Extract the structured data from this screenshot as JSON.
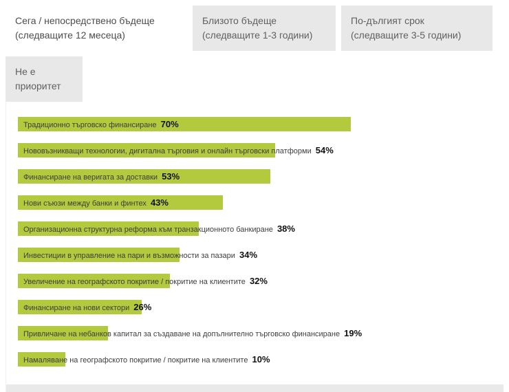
{
  "tabs": {
    "row1": [
      {
        "line1": "Сега / непосредствено бъдеще",
        "line2": "(следващите 12 месеца)",
        "active": true
      },
      {
        "line1": "Близото бъдеще",
        "line2": "(следващите 1-3 години)",
        "active": false
      },
      {
        "line1": "По-дългият срок",
        "line2": "(следващите 3-5 години)",
        "active": false
      }
    ],
    "row2": [
      {
        "line1": "Не е",
        "line2": "приоритет",
        "active": false
      }
    ]
  },
  "chart_data": {
    "type": "bar",
    "orientation": "horizontal",
    "title": "",
    "categories": [
      "Традиционно търговско финансиране",
      "Нововъзникващи технологии, дигитална търговия и онлайн търговски платформи",
      "Финансиране на веригата за доставки",
      "Нови съюзи между банки и финтех",
      "Организационна структурна реформа към транзакционното банкиране",
      "Инвестиции в управление на пари и възможности за пазари",
      "Увеличение на географското покритие / покритие на клиентите",
      "Финансиране на нови сектори",
      "Привличане на небанков капитал за създаване на допълнително търговско финансиране",
      "Намаляване на географското покритие / покритие на клиентите"
    ],
    "values": [
      70,
      54,
      53,
      43,
      38,
      34,
      32,
      26,
      19,
      10
    ],
    "value_suffix": "%",
    "xlim": [
      0,
      100
    ],
    "bar_color": "#b3ca3e",
    "grid": false,
    "legend": "none"
  },
  "colors": {
    "bar": "#b3ca3e",
    "tab_inactive_bg": "#e8e8e8",
    "tab_active_bg": "#ffffff",
    "tab_text": "#5f5f5f",
    "label_text": "#3d3d3d",
    "value_text": "#111111"
  }
}
